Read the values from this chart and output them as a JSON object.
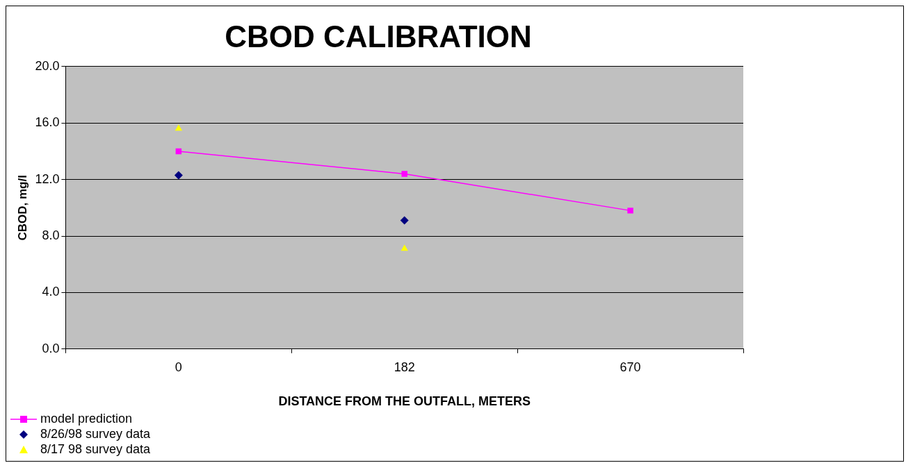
{
  "chart_data": {
    "type": "line",
    "title": "CBOD CALIBRATION",
    "xlabel": "DISTANCE FROM THE OUTFALL, METERS",
    "ylabel": "CBOD, mg/l",
    "categories": [
      "0",
      "182",
      "670"
    ],
    "series": [
      {
        "name": "model prediction",
        "color": "#ff00ff",
        "marker": "square",
        "values": [
          14.0,
          12.4,
          9.8
        ]
      },
      {
        "name": "8/26/98 survey data",
        "type": "scatter",
        "color": "#000080",
        "marker": "diamond",
        "x": [
          "0",
          "182"
        ],
        "values": [
          12.3,
          9.1
        ]
      },
      {
        "name": "8/17 98 survey data",
        "type": "scatter",
        "color": "#ffff00",
        "marker": "triangle",
        "x": [
          "0",
          "182"
        ],
        "values": [
          15.6,
          7.1
        ]
      }
    ],
    "ylim": [
      0,
      20
    ],
    "yticks": [
      {
        "value": 0,
        "label": "0.0"
      },
      {
        "value": 4,
        "label": "4.0"
      },
      {
        "value": 8,
        "label": "8.0"
      },
      {
        "value": 12,
        "label": "12.0"
      },
      {
        "value": 16,
        "label": "16.0"
      },
      {
        "value": 20,
        "label": "20.0"
      }
    ],
    "grid": "y",
    "legend": "bottom left"
  }
}
